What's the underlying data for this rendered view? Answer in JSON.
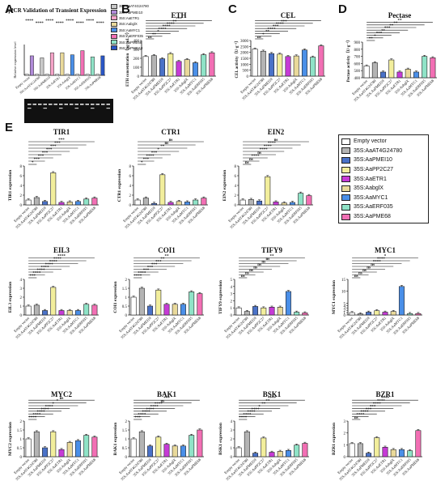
{
  "series_colors": [
    "#ffffff",
    "#b4b4b4",
    "#4a72c8",
    "#f2ee9c",
    "#c63bd6",
    "#e9d99a",
    "#4a8fe8",
    "#8fe3c7",
    "#f26fb4"
  ],
  "legend": [
    "Empty vector",
    "35S:AaAT4G24780",
    "35S:AaPMEI10",
    "35S:AaPP2C27",
    "35S:AaETR1",
    "35S:AabglX",
    "35S:AaMYC1",
    "35S:AaERF035",
    "35S:AaPME68"
  ],
  "mini_legend": [
    "35S:AaAT4G24780",
    "35S:AaPMEI10",
    "35S:AaETR1",
    "35S:AabglX",
    "35S:AaMYC1",
    "35S:AaERF035",
    "35S:AaPME68",
    "35S:AaPMEI10"
  ],
  "panel_letters": {
    "A": "A",
    "B": "B",
    "C": "C",
    "D": "D",
    "E": "E"
  },
  "chart_data": [
    {
      "id": "A",
      "type": "bar",
      "title": "qPCR Validation of Transient Expression",
      "ylabel": "Relative expression level",
      "ylim": [
        0,
        30
      ],
      "groups": [
        "Empty vector",
        "35S:AaAT4G24780",
        "35S:AaPMEI10",
        "35S:AaETR1",
        "35S:AabglX",
        "35S:AaMYC1",
        "35S:AaERF035",
        "35S:AaPME68"
      ],
      "series": [
        {
          "values": [
            1,
            19,
            1,
            17,
            1,
            22,
            1,
            22,
            1,
            20,
            1,
            24,
            1,
            18,
            1,
            19
          ]
        }
      ],
      "sig": [
        "****",
        "****",
        "****",
        "****",
        "****",
        "****",
        "****",
        "****"
      ]
    },
    {
      "id": "B",
      "type": "bar",
      "title": "ETH",
      "ylabel": "ETH concentration（ng·mL⁻¹）",
      "ylim": [
        0,
        400
      ],
      "yticks": [
        0,
        100,
        200,
        300,
        400
      ],
      "categories": [
        "Empty vector",
        "35S:AaAT4G24780",
        "35S:AaPMEI10",
        "35S:AaPP2C27",
        "35S:AaETR1",
        "35S:AabglX",
        "35S:AaMYC1",
        "35S:AaERF035",
        "35S:AaPME68"
      ],
      "values": [
        220,
        230,
        195,
        252,
        165,
        185,
        150,
        240,
        262
      ],
      "sig": [
        "ns",
        "**",
        "*",
        "****",
        "****",
        "****",
        "**",
        "***"
      ]
    },
    {
      "id": "C",
      "type": "bar",
      "title": "CEL",
      "ylabel": "CEL activity（U·g⁻¹）",
      "ylim": [
        0,
        3000
      ],
      "yticks": [
        0,
        500,
        1000,
        1500,
        2000,
        2500,
        3000
      ],
      "categories": [
        "Empty vector",
        "35S:AaAT4G24780",
        "35S:AaPMEI10",
        "35S:AaPP2C27",
        "35S:AaETR1",
        "35S:AabglX",
        "35S:AaMYC1",
        "35S:AaERF035",
        "35S:AaPME68"
      ],
      "values": [
        2280,
        2100,
        1900,
        1850,
        1650,
        1700,
        2200,
        1600,
        2550
      ],
      "sig": [
        "ns",
        "*",
        "**",
        "****",
        "***",
        "****",
        "***",
        "*"
      ]
    },
    {
      "id": "D",
      "type": "bar",
      "title": "Pectase",
      "ylabel": "Pectase activity（U·g⁻¹）",
      "ylim": [
        400,
        900
      ],
      "yticks": [
        400,
        500,
        600,
        700,
        800,
        900
      ],
      "categories": [
        "Empty vector",
        "35S:AaAT4G24780",
        "35S:AaPMEI10",
        "35S:AaPP2C27",
        "35S:AaETR1",
        "35S:AabglX",
        "35S:AaMYC1",
        "35S:AaERF035",
        "35S:AaPME68"
      ],
      "values": [
        565,
        610,
        480,
        650,
        480,
        520,
        480,
        700,
        680
      ],
      "sig": [
        "**",
        "*",
        "***",
        "**",
        "***",
        "**",
        "**",
        "**"
      ]
    },
    {
      "id": "TIR1",
      "type": "bar",
      "title": "TIR1",
      "ylabel": "TIR1 expression",
      "ylim": [
        0,
        8
      ],
      "yticks": [
        0,
        2,
        4,
        6,
        8
      ],
      "categories": [
        "Empty vector",
        "35S:AaAT4G24780",
        "35S:AaPMEI10",
        "35S:AaPP2C27",
        "35S:AaETR1",
        "35S:AabglX",
        "35S:AaMYC1",
        "35S:AaERF035",
        "35S:AaPME68"
      ],
      "values": [
        1,
        1.5,
        0.7,
        6.6,
        0.5,
        0.6,
        0.7,
        1.2,
        1.4
      ],
      "sig": [
        "*",
        "***",
        "***",
        "***",
        "***",
        "***",
        "***",
        "***"
      ]
    },
    {
      "id": "CTR1",
      "type": "bar",
      "title": "CTR1",
      "ylabel": "CTR1 expression",
      "ylim": [
        0,
        8
      ],
      "yticks": [
        0,
        2,
        4,
        6,
        8
      ],
      "categories": [
        "Empty vector",
        "35S:AaAT4G24780",
        "35S:AaPMEI10",
        "35S:AaPP2C27",
        "35S:AaETR1",
        "35S:AabglX",
        "35S:AaMYC1",
        "35S:AaERF035",
        "35S:AaPME68"
      ],
      "values": [
        1,
        1.4,
        0.3,
        6.2,
        0.5,
        0.7,
        0.6,
        1.0,
        1.4
      ],
      "sig": [
        "*",
        "***",
        "****",
        "***",
        "*",
        "**",
        "ns",
        "ns"
      ]
    },
    {
      "id": "EIN2",
      "type": "bar",
      "title": "EIN2",
      "ylabel": "EIN2 expression",
      "ylim": [
        0,
        8
      ],
      "yticks": [
        0,
        2,
        4,
        6,
        8
      ],
      "categories": [
        "Empty vector",
        "35S:AaAT4G24780",
        "35S:AaPMEI10",
        "35S:AaPP2C27",
        "35S:AaETR1",
        "35S:AabglX",
        "35S:AaMYC1",
        "35S:AaERF035",
        "35S:AaPME68"
      ],
      "values": [
        1,
        1.1,
        0.8,
        5.8,
        0.6,
        0.4,
        0.5,
        2.4,
        1.9
      ],
      "sig": [
        "ns",
        "ns",
        "****",
        "ns",
        "****",
        "****",
        "****",
        "ns"
      ]
    },
    {
      "id": "EIL3",
      "type": "bar",
      "title": "EIL3",
      "ylabel": "EIL3 expression",
      "ylim": [
        0,
        4
      ],
      "yticks": [
        0,
        1,
        2,
        3,
        4
      ],
      "categories": [
        "Empty vector",
        "35S:AaAT4G24780",
        "35S:AaPMEI10",
        "35S:AaPP2C27",
        "35S:AaETR1",
        "35S:AabglX",
        "35S:AaMYC1",
        "35S:AaERF035",
        "35S:AaPME68"
      ],
      "values": [
        1,
        1.1,
        0.5,
        3.1,
        0.5,
        0.5,
        0.5,
        1.2,
        1.1
      ],
      "sig": [
        "***",
        "****",
        "****",
        "****",
        "****",
        "****",
        "****",
        "****"
      ]
    },
    {
      "id": "COI1",
      "type": "bar",
      "title": "COI1",
      "ylabel": "COI1 expression",
      "ylim": [
        0,
        2.0
      ],
      "yticks": [
        0,
        0.5,
        1.0,
        1.5,
        2.0
      ],
      "categories": [
        "Empty vector",
        "35S:AaAT4G24780",
        "35S:AaPMEI10",
        "35S:AaPP2C27",
        "35S:AaETR1",
        "35S:AabglX",
        "35S:AaMYC1",
        "35S:AaERF035",
        "35S:AaPME68"
      ],
      "values": [
        1.0,
        1.5,
        0.5,
        1.4,
        0.6,
        0.6,
        0.6,
        1.3,
        1.2
      ],
      "sig": [
        "****",
        "****",
        "***",
        "***",
        "***",
        "***",
        "**",
        "**"
      ]
    },
    {
      "id": "TIFY9",
      "type": "bar",
      "title": "TIFY9",
      "ylabel": "TIFY9 expression",
      "ylim": [
        0,
        5
      ],
      "yticks": [
        0,
        1,
        2,
        3,
        4,
        5
      ],
      "categories": [
        "Empty vector",
        "35S:AaAT4G24780",
        "35S:AaPMEI10",
        "35S:AaPP2C27",
        "35S:AaETR1",
        "35S:AabglX",
        "35S:AaMYC1",
        "35S:AaERF035",
        "35S:AaPME68"
      ],
      "values": [
        1,
        0.5,
        1.2,
        1.0,
        1.1,
        1.1,
        3.3,
        0.4,
        0.3
      ],
      "sig": [
        "ns",
        "ns",
        "ns",
        "ns",
        "ns",
        "ns",
        "ns",
        "**"
      ]
    },
    {
      "id": "MYC1",
      "type": "bar",
      "title": "MYC1",
      "ylabel": "MYC1 expression",
      "ylim": [
        0,
        15
      ],
      "yticks": [
        0,
        1,
        2,
        3,
        4,
        5,
        10,
        15
      ],
      "categories": [
        "Empty vector",
        "35S:AaAT4G24780",
        "35S:AaPMEI10",
        "35S:AaPP2C27",
        "35S:AaETR1",
        "35S:AabglX",
        "35S:AaMYC1",
        "35S:AaERF035",
        "35S:AaPME68"
      ],
      "values": [
        1,
        0.5,
        1.2,
        1.8,
        1.2,
        1.5,
        12,
        0.6,
        0.6
      ],
      "sig": [
        "ns",
        "ns",
        "ns",
        "ns",
        "ns",
        "****",
        "****",
        "*"
      ]
    },
    {
      "id": "MYC2",
      "type": "bar",
      "title": "MYC2",
      "ylabel": "MYC2 expression",
      "ylim": [
        0,
        2.0
      ],
      "yticks": [
        0,
        0.5,
        1.0,
        1.5,
        2.0
      ],
      "categories": [
        "Empty vector",
        "35S:AaAT4G24780",
        "35S:AaPMEI10",
        "35S:AaPP2C27",
        "35S:AaETR1",
        "35S:AabglX",
        "35S:AaMYC1",
        "35S:AaERF035",
        "35S:AaPME68"
      ],
      "values": [
        1.0,
        1.4,
        0.5,
        1.4,
        0.4,
        0.8,
        0.9,
        1.2,
        1.1
      ],
      "sig": [
        "****",
        "****",
        "****",
        "****",
        "****",
        "*",
        "*",
        "ns"
      ]
    },
    {
      "id": "BAK1",
      "type": "bar",
      "title": "BAK1",
      "ylabel": "BAK1 expression",
      "ylim": [
        0,
        2.0
      ],
      "yticks": [
        0,
        0.5,
        1.0,
        1.5,
        2.0
      ],
      "categories": [
        "Empty vector",
        "35S:AaAT4G24780",
        "35S:AaPMEI10",
        "35S:AaPP2C27",
        "35S:AaETR1",
        "35S:AabglX",
        "35S:AaMYC1",
        "35S:AaERF035",
        "35S:AaPME68"
      ],
      "values": [
        1.0,
        1.4,
        0.6,
        1.1,
        0.7,
        0.6,
        0.6,
        1.2,
        1.5
      ],
      "sig": [
        "***",
        "****",
        "****",
        "****",
        "****",
        "****",
        "ns",
        "***"
      ]
    },
    {
      "id": "BSK1",
      "type": "bar",
      "title": "BSK1",
      "ylabel": "BSK1 expression",
      "ylim": [
        0,
        4
      ],
      "yticks": [
        0,
        1,
        2,
        3,
        4
      ],
      "categories": [
        "Empty vector",
        "35S:AaAT4G24780",
        "35S:AaPMEI10",
        "35S:AaPP2C27",
        "35S:AaETR1",
        "35S:AabglX",
        "35S:AaMYC1",
        "35S:AaERF035",
        "35S:AaPME68"
      ],
      "values": [
        1,
        2.8,
        0.4,
        2.1,
        0.5,
        0.6,
        0.7,
        1.3,
        1.5
      ],
      "sig": [
        "****",
        "****",
        "****",
        "****",
        "*",
        "**",
        "**",
        "****"
      ]
    },
    {
      "id": "BZR1",
      "type": "bar",
      "title": "BZR1",
      "ylabel": "BZR1 expression",
      "ylim": [
        0,
        3
      ],
      "yticks": [
        0,
        1,
        2,
        3
      ],
      "categories": [
        "Empty vector",
        "35S:AaAT4G24780",
        "35S:AaPMEI10",
        "35S:AaPP2C27",
        "35S:AaETR1",
        "35S:AabglX",
        "35S:AaMYC1",
        "35S:AaERF035",
        "35S:AaPME68"
      ],
      "values": [
        1.1,
        1.1,
        0.3,
        1.6,
        0.8,
        0.6,
        0.6,
        0.5,
        2.2
      ],
      "sig": [
        "ns",
        "****",
        "****",
        "***",
        "***",
        "****",
        "****",
        "****"
      ]
    }
  ]
}
